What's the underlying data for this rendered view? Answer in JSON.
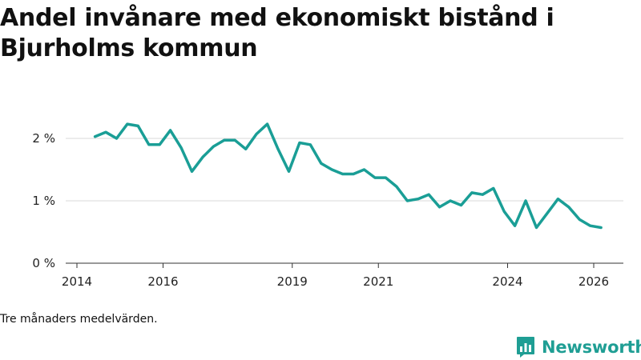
{
  "chart_data": {
    "type": "line",
    "title": "Andel invånare med ekonomiskt bistånd i Bjurholms kommun",
    "xlabel": "",
    "ylabel": "",
    "x_ticks": [
      2014,
      2016,
      2019,
      2021,
      2024,
      2026
    ],
    "y_ticks": [
      0,
      1,
      2
    ],
    "y_tick_labels": [
      "0 %",
      "1 %",
      "2 %"
    ],
    "ylim": [
      0,
      2.3
    ],
    "xlim": [
      2014.0,
      2026.7
    ],
    "grid": "horizontal",
    "legend": "none",
    "line_color": "#1a9e96",
    "series": [
      {
        "x": [
          2014.42,
          2014.67,
          2014.92,
          2015.17,
          2015.42,
          2015.67,
          2015.92,
          2016.17,
          2016.42,
          2016.67,
          2016.92,
          2017.17,
          2017.42,
          2017.67,
          2017.92,
          2018.17,
          2018.42,
          2018.67,
          2018.92,
          2019.17,
          2019.42,
          2019.67,
          2019.92,
          2020.17,
          2020.42,
          2020.67,
          2020.92,
          2021.17,
          2021.42,
          2021.67,
          2021.92,
          2022.17,
          2022.42,
          2022.67,
          2022.92,
          2023.17,
          2023.42,
          2023.67,
          2023.92,
          2024.17,
          2024.42,
          2024.67,
          2024.92,
          2025.17,
          2025.42,
          2025.67,
          2025.92,
          2026.17
        ],
        "values": [
          2.03,
          2.1,
          2.0,
          2.23,
          2.2,
          1.9,
          1.9,
          2.13,
          1.85,
          1.47,
          1.7,
          1.87,
          1.97,
          1.97,
          1.83,
          2.07,
          2.23,
          1.83,
          1.47,
          1.93,
          1.9,
          1.6,
          1.5,
          1.43,
          1.43,
          1.5,
          1.37,
          1.37,
          1.23,
          1.0,
          1.03,
          1.1,
          0.9,
          1.0,
          0.93,
          1.13,
          1.1,
          1.2,
          0.83,
          0.6,
          1.0,
          0.57,
          0.8,
          1.03,
          0.9,
          0.7,
          0.6,
          0.57
        ]
      }
    ]
  },
  "note": "Tre månaders medelvärden.",
  "brand": {
    "name": "Newsworthy",
    "icon": "newsworthy-logo-icon",
    "color": "#1f9e94"
  }
}
